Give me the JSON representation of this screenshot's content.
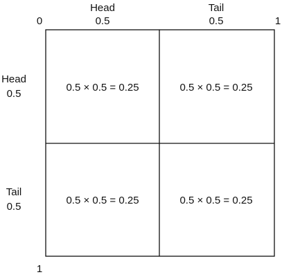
{
  "corners": {
    "origin": "0",
    "top_end": "1",
    "left_end": "1"
  },
  "columns": [
    {
      "label": "Head",
      "probability": "0.5"
    },
    {
      "label": "Tail",
      "probability": "0.5"
    }
  ],
  "rows": [
    {
      "label": "Head",
      "probability": "0.5"
    },
    {
      "label": "Tail",
      "probability": "0.5"
    }
  ],
  "cells": [
    [
      "0.5 × 0.5 = 0.25",
      "0.5 × 0.5 = 0.25"
    ],
    [
      "0.5 × 0.5 = 0.25",
      "0.5 × 0.5 = 0.25"
    ]
  ]
}
